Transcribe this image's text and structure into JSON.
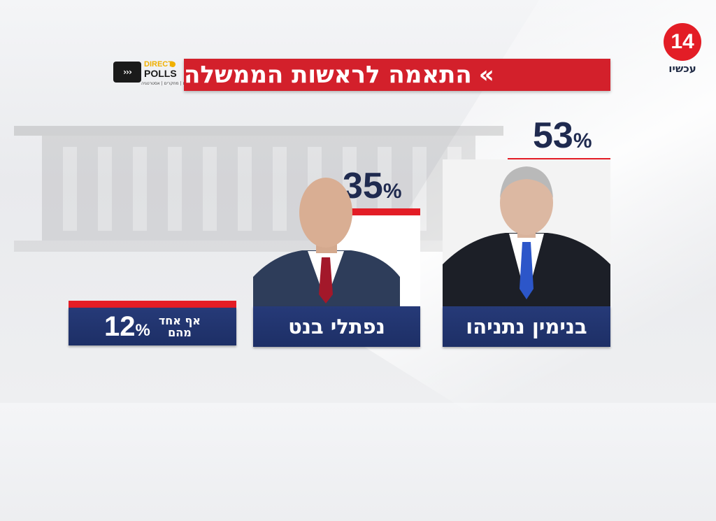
{
  "header": {
    "title": "התאמה לראשות הממשלה",
    "chevrons": "»"
  },
  "channel_logo": {
    "number": "14",
    "name": "עכשיו",
    "color": "#e31d26"
  },
  "pollster_logo": {
    "line1": "DIRECT",
    "line2": "POLLS",
    "tagline": "סקרים | מחקרים | אסטרטגיה",
    "arrows": "›››"
  },
  "colors": {
    "accent_red": "#e31d26",
    "title_red": "#d3202b",
    "navy": "#1f2a4f",
    "name_box": "#263a78"
  },
  "chart_data": {
    "type": "bar",
    "title": "התאמה לראשות הממשלה",
    "categories": [
      "בנימין נתניהו",
      "נפתלי בנט",
      "אף אחד מהם"
    ],
    "values": [
      53,
      35,
      12
    ],
    "unit": "%"
  },
  "labels": {
    "netanyahu": "בנימין נתניהו",
    "bennett": "נפתלי בנט",
    "none_line1": "אף אחד",
    "none_line2": "מהם",
    "pct_sign": "%",
    "v_netanyahu": "53",
    "v_bennett": "35",
    "v_none": "12"
  }
}
